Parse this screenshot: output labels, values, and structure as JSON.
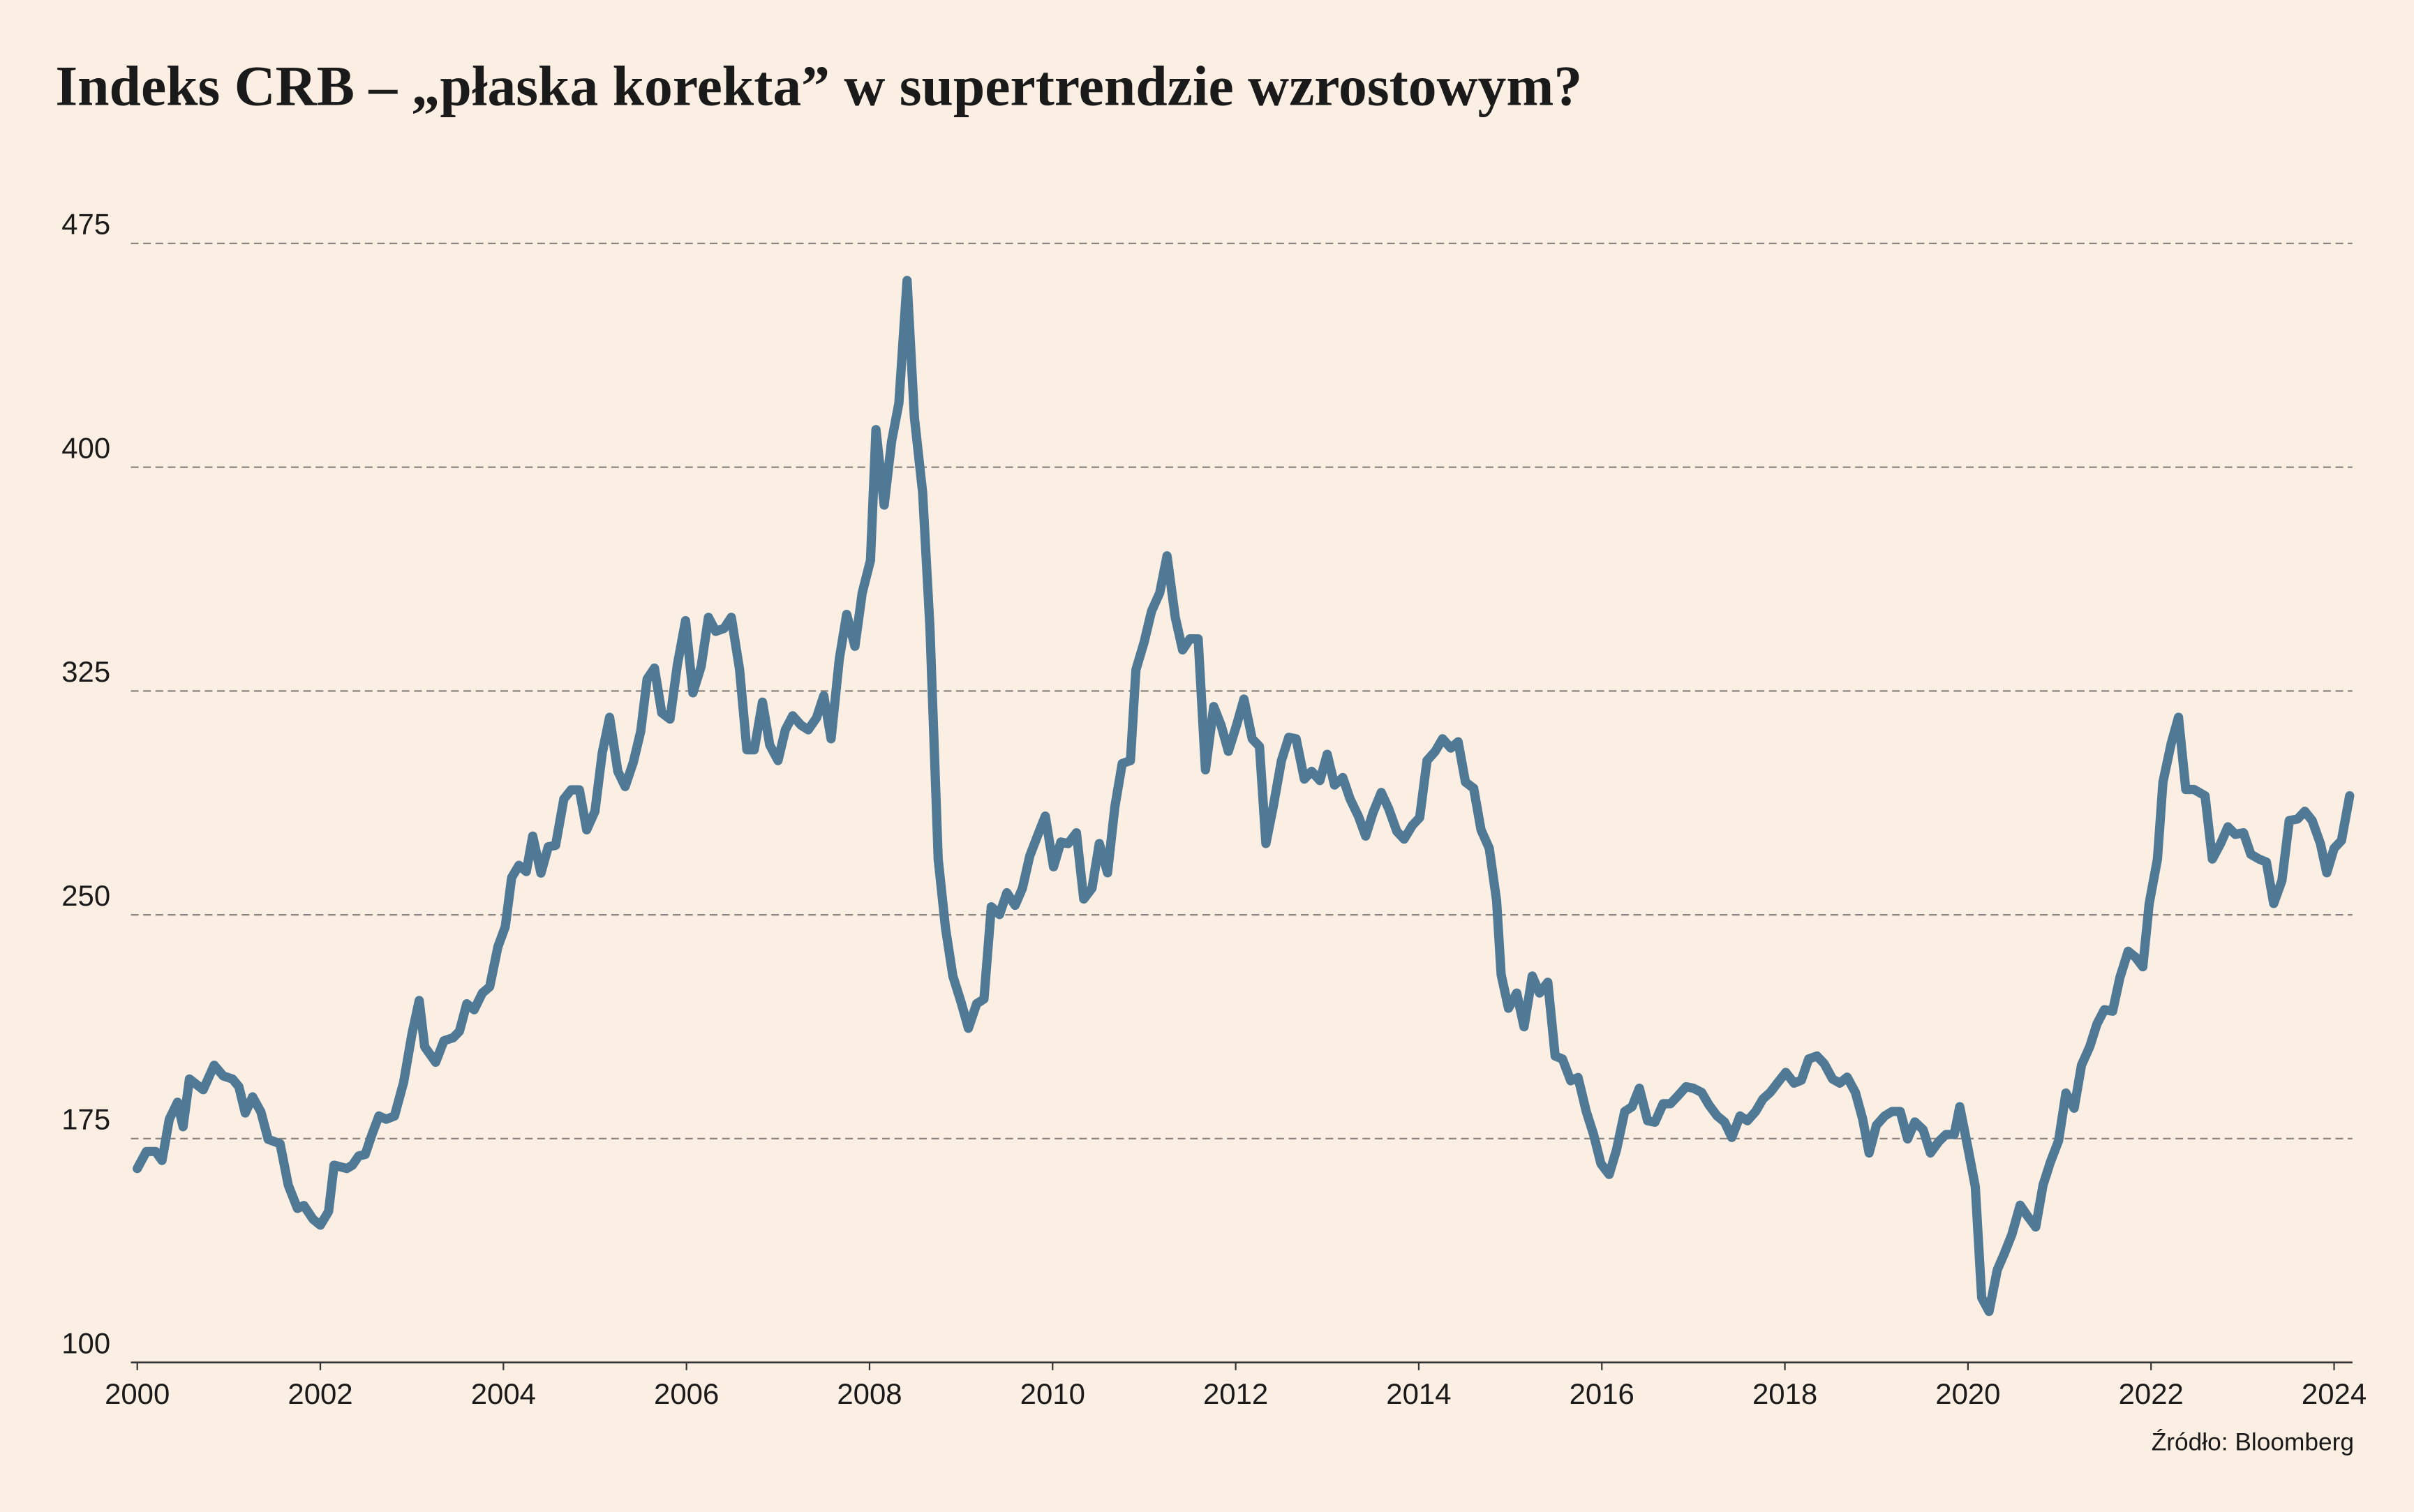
{
  "chart_data": {
    "type": "line",
    "title": "Indeks CRB – „płaska korekta” w supertrendzie wzrostowym?",
    "source": "Źródło: Bloomberg",
    "color": "#4f7995",
    "grid": true,
    "xlim": [
      1999.93,
      2024.2
    ],
    "xticks": [
      2000,
      2002,
      2004,
      2006,
      2008,
      2010,
      2012,
      2014,
      2016,
      2018,
      2020,
      2022,
      2024
    ],
    "ylim": [
      100,
      475
    ],
    "yticks": [
      100,
      175,
      250,
      325,
      400,
      475
    ],
    "x": [
      2000.0,
      2000.1,
      2000.2,
      2000.27,
      2000.35,
      2000.44,
      2000.5,
      2000.57,
      2000.72,
      2000.84,
      2000.94,
      2001.04,
      2001.11,
      2001.18,
      2001.26,
      2001.35,
      2001.43,
      2001.56,
      2001.65,
      2001.75,
      2001.82,
      2001.92,
      2002.0,
      2002.09,
      2002.15,
      2002.29,
      2002.35,
      2002.42,
      2002.49,
      2002.57,
      2002.64,
      2002.72,
      2002.81,
      2002.91,
      2003.0,
      2003.08,
      2003.14,
      2003.26,
      2003.35,
      2003.45,
      2003.52,
      2003.6,
      2003.68,
      2003.77,
      2003.85,
      2003.94,
      2004.02,
      2004.09,
      2004.17,
      2004.25,
      2004.32,
      2004.41,
      2004.49,
      2004.57,
      2004.66,
      2004.74,
      2004.83,
      2004.91,
      2005.0,
      2005.08,
      2005.16,
      2005.25,
      2005.33,
      2005.42,
      2005.5,
      2005.57,
      2005.65,
      2005.73,
      2005.82,
      2005.9,
      2005.99,
      2006.07,
      2006.16,
      2006.24,
      2006.32,
      2006.41,
      2006.49,
      2006.58,
      2006.66,
      2006.74,
      2006.83,
      2006.91,
      2007.0,
      2007.08,
      2007.16,
      2007.25,
      2007.33,
      2007.42,
      2007.5,
      2007.58,
      2007.67,
      2007.75,
      2007.84,
      2007.92,
      2008.01,
      2008.07,
      2008.16,
      2008.24,
      2008.32,
      2008.41,
      2008.49,
      2008.58,
      2008.66,
      2008.75,
      2008.83,
      2008.91,
      2009.0,
      2009.08,
      2009.17,
      2009.25,
      2009.33,
      2009.42,
      2009.5,
      2009.59,
      2009.67,
      2009.75,
      2009.84,
      2009.92,
      2010.01,
      2010.09,
      2010.17,
      2010.26,
      2010.34,
      2010.43,
      2010.51,
      2010.6,
      2010.68,
      2010.76,
      2010.85,
      2010.91,
      2011.0,
      2011.08,
      2011.17,
      2011.25,
      2011.34,
      2011.42,
      2011.5,
      2011.59,
      2011.67,
      2011.76,
      2011.84,
      2011.92,
      2012.01,
      2012.09,
      2012.18,
      2012.26,
      2012.33,
      2012.41,
      2012.5,
      2012.58,
      2012.66,
      2012.75,
      2012.83,
      2012.92,
      2013.0,
      2013.08,
      2013.17,
      2013.25,
      2013.34,
      2013.42,
      2013.5,
      2013.59,
      2013.67,
      2013.76,
      2013.84,
      2013.93,
      2014.01,
      2014.09,
      2014.18,
      2014.26,
      2014.35,
      2014.43,
      2014.51,
      2014.6,
      2014.68,
      2014.77,
      2014.85,
      2014.9,
      2014.98,
      2015.07,
      2015.15,
      2015.24,
      2015.32,
      2015.41,
      2015.49,
      2015.57,
      2015.66,
      2015.74,
      2015.83,
      2015.91,
      2015.99,
      2016.08,
      2016.16,
      2016.25,
      2016.33,
      2016.41,
      2016.5,
      2016.58,
      2016.67,
      2016.75,
      2016.83,
      2016.92,
      2017.0,
      2017.09,
      2017.17,
      2017.26,
      2017.34,
      2017.42,
      2017.51,
      2017.59,
      2017.68,
      2017.76,
      2017.84,
      2017.93,
      2018.01,
      2018.1,
      2018.18,
      2018.26,
      2018.35,
      2018.43,
      2018.52,
      2018.6,
      2018.68,
      2018.77,
      2018.85,
      2018.92,
      2019.0,
      2019.09,
      2019.17,
      2019.26,
      2019.34,
      2019.42,
      2019.51,
      2019.59,
      2019.68,
      2019.76,
      2019.85,
      2019.91,
      2020.0,
      2020.08,
      2020.15,
      2020.23,
      2020.32,
      2020.4,
      2020.48,
      2020.57,
      2020.65,
      2020.74,
      2020.82,
      2020.9,
      2020.99,
      2021.07,
      2021.16,
      2021.24,
      2021.33,
      2021.41,
      2021.49,
      2021.58,
      2021.66,
      2021.75,
      2021.83,
      2021.91,
      2021.98,
      2022.07,
      2022.13,
      2022.22,
      2022.3,
      2022.38,
      2022.47,
      2022.59,
      2022.67,
      2022.76,
      2022.84,
      2022.92,
      2023.01,
      2023.09,
      2023.18,
      2023.26,
      2023.34,
      2023.43,
      2023.51,
      2023.6,
      2023.68,
      2023.76,
      2023.85,
      2023.92,
      2024.0,
      2024.08,
      2024.17
    ],
    "values": [
      165.0,
      170.7,
      170.7,
      167.7,
      181.5,
      187.2,
      179,
      195,
      191.4,
      199.6,
      196,
      195,
      192.4,
      183.6,
      189,
      184,
      174.8,
      173.3,
      159.4,
      151.6,
      152.6,
      148,
      146,
      150.6,
      166.1,
      165,
      166.1,
      169.2,
      169.7,
      176.9,
      182.6,
      181.5,
      182.6,
      193.9,
      209.9,
      221.3,
      205.8,
      200.6,
      207.8,
      208.8,
      211,
      220.2,
      218.2,
      223.8,
      225.9,
      239.3,
      246,
      262.5,
      266.6,
      264.5,
      276.4,
      264,
      272.8,
      273.3,
      288.8,
      291.9,
      291.9,
      278.5,
      284.7,
      304.3,
      316.2,
      298.1,
      293,
      301.2,
      311.5,
      329,
      332.7,
      317.7,
      315.6,
      333.7,
      348.6,
      324.4,
      333.2,
      349.7,
      345,
      346,
      349.7,
      332.2,
      305.3,
      305.3,
      321.3,
      306.9,
      301.7,
      312,
      316.7,
      313.6,
      312,
      316,
      323.4,
      309,
      335.8,
      350.7,
      340,
      357.9,
      368.8,
      412.6,
      387.3,
      408.5,
      421.4,
      462.6,
      416.7,
      391.5,
      346.1,
      268.7,
      245.5,
      229.5,
      220.7,
      212,
      220.2,
      221.8,
      252.7,
      250.1,
      257.4,
      253.2,
      258.9,
      269.7,
      276.9,
      283.1,
      266.1,
      274.4,
      273.9,
      277.5,
      255.3,
      258.9,
      273.9,
      264.1,
      286.2,
      300.7,
      301.7,
      332.1,
      341.4,
      351.7,
      357.9,
      370.3,
      349.7,
      338.8,
      342.5,
      342.5,
      298.6,
      319.8,
      313.6,
      304.8,
      313.6,
      322.3,
      309,
      306.4,
      273.9,
      286.2,
      301.7,
      309.5,
      309,
      295.5,
      298.1,
      295,
      303.8,
      293.5,
      296,
      288.8,
      283.1,
      276.4,
      284.2,
      291,
      285.7,
      278,
      275.4,
      280,
      282.6,
      301.7,
      304.8,
      309,
      305.9,
      308,
      294.5,
      292.4,
      278.5,
      272.3,
      254.8,
      230,
      218.7,
      223.8,
      212.5,
      229.5,
      223.8,
      227.4,
      202.7,
      201.7,
      194.4,
      195.5,
      184.1,
      176.4,
      166.6,
      163,
      171.2,
      184.1,
      185.7,
      191.9,
      181,
      180.5,
      186.7,
      186.7,
      189.3,
      192.4,
      191.9,
      190.5,
      186.3,
      182.6,
      180.6,
      175.4,
      182.6,
      181,
      184.1,
      188.3,
      190.5,
      194.1,
      197.2,
      193.6,
      194.6,
      201.7,
      202.7,
      200.1,
      195,
      193.6,
      195.6,
      190.5,
      181.5,
      170.2,
      179.5,
      182.6,
      184.1,
      184.1,
      174.9,
      180.6,
      178,
      170.2,
      174,
      176.4,
      176.4,
      185.7,
      171.8,
      158.9,
      121.7,
      117.1,
      131,
      136.7,
      142.9,
      152.7,
      149.1,
      145.4,
      159.4,
      167.1,
      174.3,
      190.3,
      185.2,
      199.6,
      205.8,
      213.5,
      218.2,
      217.7,
      229,
      237.8,
      235.8,
      232.6,
      253.8,
      268.7,
      294.5,
      307.4,
      316.2,
      292,
      292,
      289.9,
      268.7,
      273.9,
      279.5,
      277,
      277.5,
      270.3,
      268.7,
      267.7,
      253.8,
      261.5,
      281.6,
      282.1,
      284.7,
      281.6,
      273.9,
      264.1,
      272.3,
      274.9,
      289.9
    ]
  }
}
